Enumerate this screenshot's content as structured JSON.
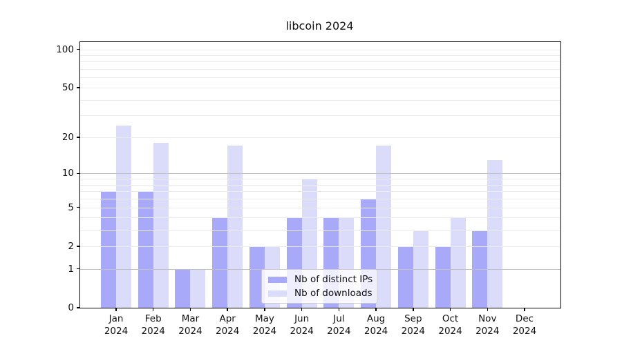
{
  "chart_data": {
    "type": "bar",
    "title": "libcoin 2024",
    "categories": [
      "Jan",
      "Feb",
      "Mar",
      "Apr",
      "May",
      "Jun",
      "Jul",
      "Aug",
      "Sep",
      "Oct",
      "Nov",
      "Dec"
    ],
    "category_year": "2024",
    "series": [
      {
        "name": "Nb of distinct IPs",
        "color": "#a9a9fa",
        "values": [
          7,
          7,
          1,
          4,
          2,
          4,
          4,
          6,
          2,
          2,
          3,
          0
        ]
      },
      {
        "name": "Nb of downloads",
        "color": "#dbdbfa",
        "values": [
          25,
          18,
          1,
          17,
          2,
          9,
          4,
          17,
          3,
          4,
          13,
          0
        ]
      }
    ],
    "yscale": "log10(1+x)",
    "ylim": [
      0,
      100
    ],
    "ytick_labels": [
      "0",
      "1",
      "2",
      "5",
      "10",
      "20",
      "50",
      "100"
    ],
    "ytick_values": [
      0,
      1,
      2,
      5,
      10,
      20,
      50,
      100
    ],
    "major_grid_values": [
      1,
      10
    ],
    "minor_grid_values": [
      2,
      3,
      4,
      5,
      6,
      7,
      8,
      9,
      20,
      30,
      40,
      50,
      60,
      70,
      80,
      90,
      100
    ],
    "grid": "horizontal",
    "legend_position": "lower center",
    "xlabel": "",
    "ylabel": ""
  }
}
